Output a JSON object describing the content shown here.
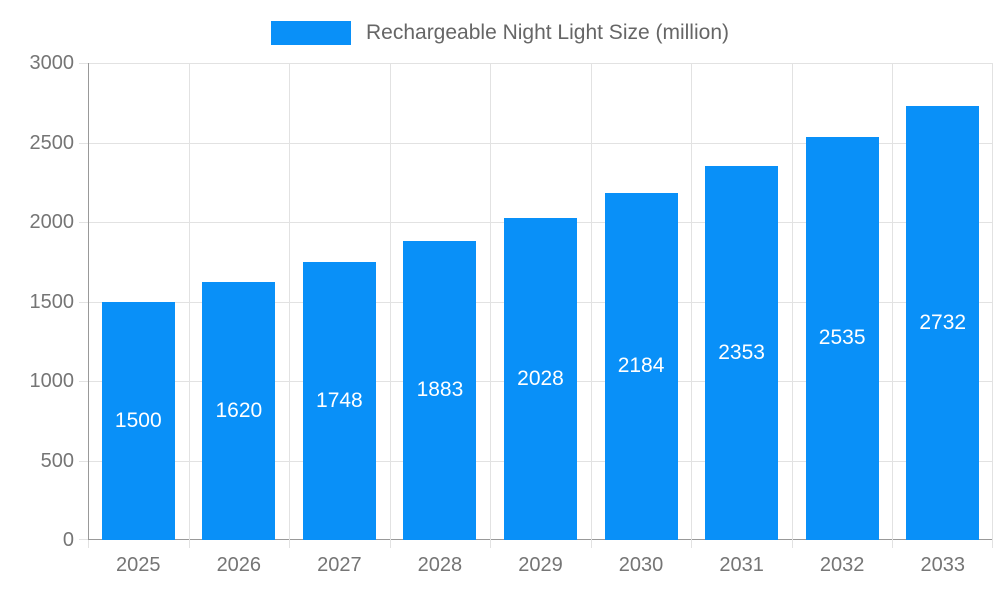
{
  "legend": {
    "label": "Rechargeable Night Light Size (million)"
  },
  "chart_data": {
    "type": "bar",
    "title": "Rechargeable Night Light Size (million)",
    "categories": [
      "2025",
      "2026",
      "2027",
      "2028",
      "2029",
      "2030",
      "2031",
      "2032",
      "2033"
    ],
    "values": [
      1500,
      1620,
      1748,
      1883,
      2028,
      2184,
      2353,
      2535,
      2732
    ],
    "xlabel": "",
    "ylabel": "",
    "ylim": [
      0,
      3000
    ],
    "ytick_step": 500,
    "ytick_labels": [
      "0",
      "500",
      "1000",
      "1500",
      "2000",
      "2500",
      "3000"
    ],
    "grid": true,
    "legend_position": "top-center",
    "bar_label_position": "inside-center"
  },
  "colors": {
    "bar": "#0990f8",
    "bar_label": "#ffffff",
    "axis_line": "#999999",
    "grid_line": "#e2e2e2",
    "axis_label": "#757575",
    "legend_text": "#666666",
    "background": "#ffffff"
  }
}
